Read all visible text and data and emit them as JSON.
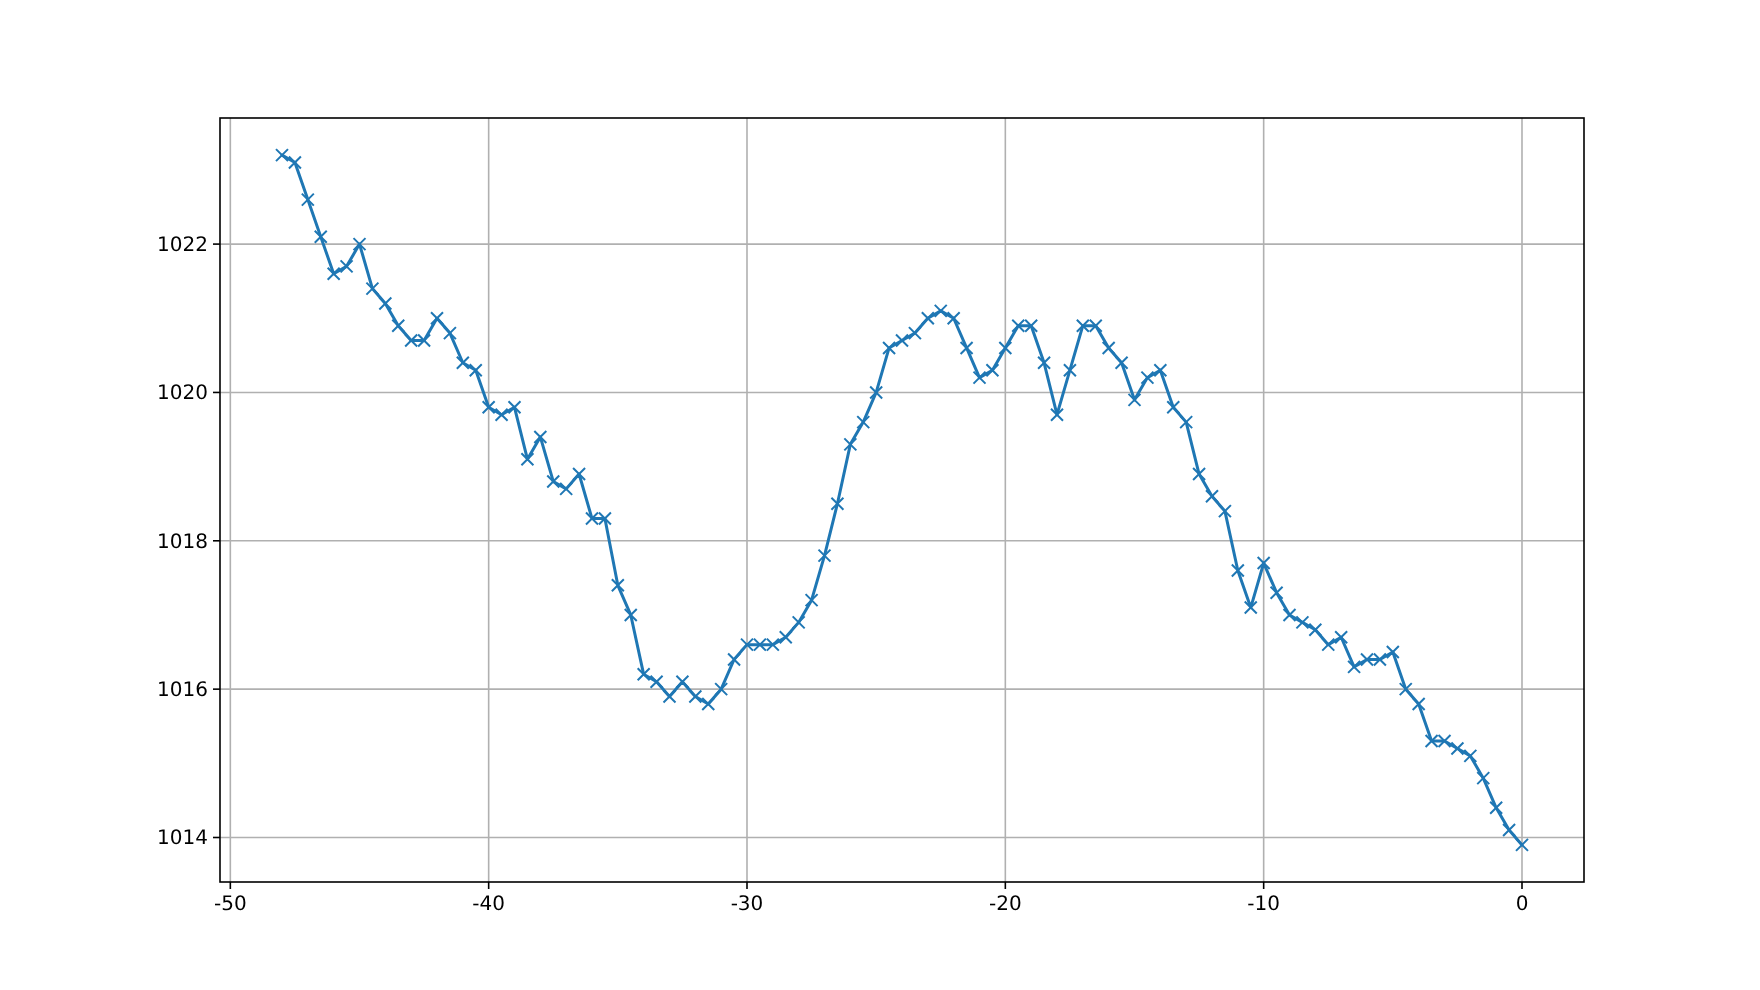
{
  "chart_data": {
    "type": "line",
    "x": [
      -48,
      -47.5,
      -47,
      -46.5,
      -46,
      -45.5,
      -45,
      -44.5,
      -44,
      -43.5,
      -43,
      -42.5,
      -42,
      -41.5,
      -41,
      -40.5,
      -40,
      -39.5,
      -39,
      -38.5,
      -38,
      -37.5,
      -37,
      -36.5,
      -36,
      -35.5,
      -35,
      -34.5,
      -34,
      -33.5,
      -33,
      -32.5,
      -32,
      -31.5,
      -31,
      -30.5,
      -30,
      -29.5,
      -29,
      -28.5,
      -28,
      -27.5,
      -27,
      -26.5,
      -26,
      -25.5,
      -25,
      -24.5,
      -24,
      -23.5,
      -23,
      -22.5,
      -22,
      -21.5,
      -21,
      -20.5,
      -20,
      -19.5,
      -19,
      -18.5,
      -18,
      -17.5,
      -17,
      -16.5,
      -16,
      -15.5,
      -15,
      -14.5,
      -14,
      -13.5,
      -13,
      -12.5,
      -12,
      -11.5,
      -11,
      -10.5,
      -10,
      -9.5,
      -9,
      -8.5,
      -8,
      -7.5,
      -7,
      -6.5,
      -6,
      -5.5,
      -5,
      -4.5,
      -4,
      -3.5,
      -3,
      -2.5,
      -2,
      -1.5,
      -1,
      -0.5,
      0
    ],
    "series": [
      {
        "color": "#1f77b4",
        "values": [
          1023.2,
          1023.1,
          1022.6,
          1022.1,
          1021.6,
          1021.7,
          1022.0,
          1021.4,
          1021.2,
          1020.9,
          1020.7,
          1020.7,
          1021.0,
          1020.8,
          1020.4,
          1020.3,
          1019.8,
          1019.7,
          1019.8,
          1019.1,
          1019.4,
          1018.8,
          1018.7,
          1018.9,
          1018.3,
          1018.3,
          1017.4,
          1017.0,
          1016.2,
          1016.1,
          1015.9,
          1016.1,
          1015.9,
          1015.8,
          1016.0,
          1016.4,
          1016.6,
          1016.6,
          1016.6,
          1016.7,
          1016.9,
          1017.2,
          1017.8,
          1018.5,
          1019.3,
          1019.6,
          1020.0,
          1020.6,
          1020.7,
          1020.8,
          1021.0,
          1021.1,
          1021.0,
          1020.6,
          1020.2,
          1020.3,
          1020.6,
          1020.9,
          1020.9,
          1020.4,
          1019.7,
          1020.3,
          1020.9,
          1020.9,
          1020.6,
          1020.4,
          1019.9,
          1020.2,
          1020.3,
          1019.8,
          1019.6,
          1018.9,
          1018.6,
          1018.4,
          1017.6,
          1017.1,
          1017.7,
          1017.3,
          1017.0,
          1016.9,
          1016.8,
          1016.6,
          1016.7,
          1016.3,
          1016.4,
          1016.4,
          1016.5,
          1016.0,
          1015.8,
          1015.3,
          1015.3,
          1015.2,
          1015.1,
          1014.8,
          1014.4,
          1014.1,
          1013.9
        ]
      }
    ],
    "xlim": [
      -50.4,
      2.4
    ],
    "ylim": [
      1013.4,
      1023.7
    ],
    "xticks": [
      -50,
      -40,
      -30,
      -20,
      -10,
      0
    ],
    "yticks": [
      1014,
      1016,
      1018,
      1020,
      1022
    ],
    "grid": true,
    "marker": "cross",
    "line_style": "solid"
  }
}
